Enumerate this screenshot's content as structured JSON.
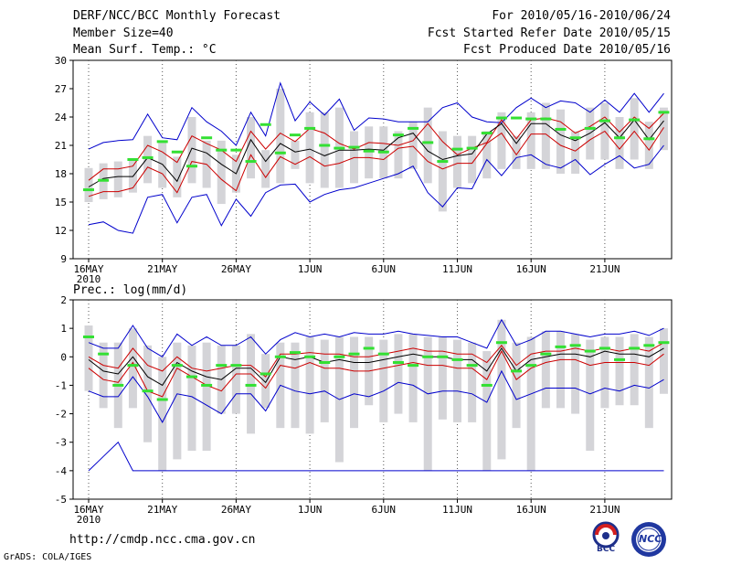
{
  "header": {
    "title": "DERF/NCC/BCC Monthly Forecast",
    "member": "Member Size=40",
    "variable": "Mean Surf. Temp.: °C",
    "period": "For 2010/05/16-2010/06/24",
    "refer": "Fcst Started Refer Date 2010/05/15",
    "produced": "Fcst Produced Date 2010/05/16"
  },
  "footer": {
    "url": "http://cmdp.ncc.cma.gov.cn",
    "credit": "GrADS: COLA/IGES",
    "logo_bcc": "BCC",
    "logo_ncc": "NCC"
  },
  "colors": {
    "spread": "#d4d4d8",
    "bound": "#0000cc",
    "band": "#cc0000",
    "mean": "#000000",
    "obs": "#33e033"
  },
  "chart_data": [
    {
      "type": "line",
      "title": "Mean Surf. Temp.: °C",
      "ylim": [
        9,
        30
      ],
      "yticks": [
        9,
        12,
        15,
        18,
        21,
        24,
        27,
        30
      ],
      "x_labels": [
        "16MAY",
        "21MAY",
        "26MAY",
        "1JUN",
        "6JUN",
        "11JUN",
        "16JUN",
        "21JUN"
      ],
      "x_year": "2010",
      "days": 40,
      "series": {
        "max": [
          20.6,
          21.3,
          21.5,
          21.6,
          24.3,
          21.8,
          21.6,
          25.0,
          23.5,
          22.5,
          21.0,
          24.5,
          22.0,
          27.6,
          23.6,
          25.6,
          24.2,
          25.9,
          22.6,
          23.9,
          23.8,
          23.5,
          23.5,
          23.5,
          25.0,
          25.5,
          24.0,
          23.5,
          23.4,
          25.0,
          26.0,
          25.0,
          25.7,
          25.5,
          24.5,
          25.8,
          24.5,
          26.5,
          24.5,
          26.5
        ],
        "upper": [
          17.3,
          18.5,
          18.5,
          18.8,
          21.0,
          20.3,
          19.2,
          22.0,
          21.2,
          20.5,
          19.3,
          22.5,
          20.6,
          22.3,
          21.4,
          22.8,
          22.3,
          21.2,
          20.6,
          21.3,
          21.2,
          21.0,
          21.5,
          23.3,
          21.4,
          20.0,
          20.7,
          21.3,
          23.7,
          21.7,
          23.7,
          23.9,
          23.5,
          22.3,
          23.0,
          24.0,
          22.4,
          24.0,
          22.8,
          24.4
        ],
        "mean": [
          16.6,
          17.5,
          17.7,
          17.7,
          19.7,
          19.0,
          17.2,
          20.7,
          20.2,
          19.0,
          18.0,
          21.6,
          19.3,
          21.2,
          20.3,
          20.6,
          19.9,
          20.5,
          20.5,
          20.6,
          20.5,
          21.8,
          22.3,
          20.4,
          19.5,
          19.9,
          20.1,
          22.2,
          23.3,
          21.2,
          23.3,
          23.3,
          22.1,
          21.5,
          22.3,
          23.4,
          21.8,
          23.7,
          21.6,
          23.6
        ],
        "lower": [
          15.6,
          16.1,
          16.1,
          16.5,
          18.7,
          18.0,
          16.0,
          19.3,
          19.0,
          17.4,
          16.2,
          20.0,
          17.6,
          19.8,
          19.0,
          19.8,
          18.8,
          19.1,
          19.7,
          19.7,
          19.5,
          20.7,
          20.9,
          19.3,
          18.5,
          19.1,
          19.1,
          21.2,
          22.3,
          20.0,
          22.2,
          22.2,
          21.0,
          20.4,
          21.6,
          22.5,
          20.6,
          22.5,
          20.5,
          22.9
        ],
        "min": [
          12.6,
          12.9,
          12.0,
          11.7,
          15.5,
          15.8,
          12.8,
          15.5,
          15.8,
          12.5,
          15.3,
          13.5,
          16.0,
          16.8,
          16.9,
          15.0,
          15.8,
          16.3,
          16.5,
          17.0,
          17.5,
          18.0,
          18.8,
          16.0,
          14.5,
          16.5,
          16.4,
          19.5,
          17.8,
          19.7,
          20.0,
          19.0,
          18.6,
          19.5,
          17.9,
          19.0,
          19.9,
          18.6,
          19.0,
          21.0
        ],
        "spread_hi": [
          18.6,
          19.1,
          19.3,
          19.5,
          22.0,
          21.3,
          19.8,
          24.0,
          21.5,
          21.5,
          20.0,
          24.0,
          20.5,
          27.0,
          21.5,
          24.5,
          24.5,
          25.0,
          22.5,
          23.0,
          23.0,
          22.5,
          23.5,
          25.0,
          22.5,
          22.0,
          22.0,
          22.5,
          24.5,
          22.0,
          24.5,
          25.5,
          24.8,
          22.5,
          25.0,
          25.5,
          24.0,
          26.0,
          23.5,
          25.0
        ],
        "spread_lo": [
          15.0,
          15.3,
          15.5,
          16.0,
          17.0,
          16.5,
          15.5,
          17.0,
          16.5,
          14.8,
          16.0,
          17.5,
          16.5,
          17.0,
          18.5,
          17.0,
          16.5,
          16.5,
          17.0,
          17.5,
          17.5,
          17.5,
          18.5,
          17.0,
          14.0,
          16.5,
          17.0,
          17.5,
          18.5,
          18.5,
          18.5,
          18.5,
          18.0,
          18.0,
          19.5,
          19.5,
          18.5,
          19.5,
          18.5,
          20.5
        ],
        "obs": [
          16.3,
          17.3,
          null,
          19.5,
          19.7,
          21.4,
          20.3,
          18.8,
          21.8,
          20.5,
          20.5,
          19.3,
          23.2,
          20.2,
          22.1,
          22.8,
          21.0,
          20.7,
          20.8,
          20.4,
          20.3,
          22.1,
          22.8,
          21.3,
          19.3,
          20.6,
          20.7,
          22.3,
          23.9,
          23.9,
          23.8,
          23.8,
          22.7,
          21.8,
          22.8,
          23.6,
          21.8,
          23.7,
          21.7,
          24.5
        ]
      }
    },
    {
      "type": "line",
      "title": "Prec.: log(mm/d)",
      "ylim": [
        -5,
        2
      ],
      "yticks": [
        -5,
        -4,
        -3,
        -2,
        -1,
        0,
        1,
        2
      ],
      "x_labels": [
        "16MAY",
        "21MAY",
        "26MAY",
        "1JUN",
        "6JUN",
        "11JUN",
        "16JUN",
        "21JUN"
      ],
      "x_year": "2010",
      "days": 40,
      "series": {
        "max": [
          0.5,
          0.3,
          0.3,
          1.1,
          0.3,
          0.0,
          0.8,
          0.4,
          0.7,
          0.4,
          0.4,
          0.7,
          0.1,
          0.6,
          0.85,
          0.7,
          0.8,
          0.7,
          0.85,
          0.8,
          0.8,
          0.9,
          0.8,
          0.75,
          0.7,
          0.7,
          0.5,
          0.3,
          1.3,
          0.4,
          0.6,
          0.9,
          0.9,
          0.8,
          0.7,
          0.8,
          0.8,
          0.9,
          0.75,
          1.0
        ],
        "upper": [
          0.0,
          -0.3,
          -0.4,
          0.3,
          -0.3,
          -0.5,
          0.0,
          -0.4,
          -0.5,
          -0.4,
          -0.3,
          -0.3,
          -0.7,
          0.1,
          0.1,
          0.15,
          0.1,
          0.1,
          0.0,
          0.0,
          0.1,
          0.2,
          0.3,
          0.2,
          0.2,
          0.1,
          0.1,
          -0.2,
          0.4,
          -0.3,
          0.1,
          0.2,
          0.2,
          0.3,
          0.2,
          0.3,
          0.2,
          0.3,
          0.2,
          0.5
        ],
        "mean": [
          -0.1,
          -0.5,
          -0.6,
          0.0,
          -0.7,
          -1.0,
          -0.2,
          -0.5,
          -0.7,
          -0.8,
          -0.4,
          -0.4,
          -0.9,
          0.0,
          -0.1,
          0.0,
          -0.2,
          -0.1,
          -0.2,
          -0.2,
          -0.1,
          0.0,
          0.1,
          0.0,
          0.0,
          -0.1,
          -0.1,
          -0.5,
          0.3,
          -0.5,
          -0.1,
          0.0,
          0.1,
          0.1,
          0.0,
          0.2,
          0.1,
          0.1,
          0.0,
          0.3
        ],
        "lower": [
          -0.4,
          -0.8,
          -0.9,
          -0.2,
          -1.2,
          -1.4,
          -0.4,
          -0.7,
          -1.0,
          -1.2,
          -0.6,
          -0.6,
          -1.1,
          -0.3,
          -0.4,
          -0.2,
          -0.4,
          -0.4,
          -0.5,
          -0.5,
          -0.4,
          -0.3,
          -0.2,
          -0.3,
          -0.3,
          -0.4,
          -0.4,
          -0.8,
          0.2,
          -0.8,
          -0.4,
          -0.2,
          -0.1,
          -0.1,
          -0.3,
          -0.2,
          -0.2,
          -0.2,
          -0.3,
          0.1
        ],
        "min": [
          -1.2,
          -1.4,
          -1.4,
          -0.7,
          -1.4,
          -2.3,
          -1.3,
          -1.4,
          -1.7,
          -2.0,
          -1.3,
          -1.3,
          -1.9,
          -1.0,
          -1.2,
          -1.3,
          -1.2,
          -1.5,
          -1.3,
          -1.4,
          -1.2,
          -0.9,
          -1.0,
          -1.3,
          -1.2,
          -1.2,
          -1.3,
          -1.6,
          -0.5,
          -1.5,
          -1.3,
          -1.1,
          -1.1,
          -1.1,
          -1.3,
          -1.1,
          -1.2,
          -1.0,
          -1.1,
          -0.8
        ],
        "min_floor": [
          -4.0,
          -3.5,
          -3.0,
          -4.0
        ],
        "spread_hi": [
          1.1,
          0.5,
          0.5,
          1.0,
          0.4,
          0.0,
          0.5,
          0.4,
          0.5,
          0.4,
          0.4,
          0.8,
          0.1,
          0.5,
          0.5,
          0.7,
          0.6,
          0.7,
          0.7,
          0.7,
          0.6,
          0.8,
          0.8,
          0.7,
          0.7,
          0.6,
          0.5,
          0.2,
          1.3,
          0.5,
          0.7,
          0.9,
          0.9,
          0.8,
          0.6,
          0.7,
          0.7,
          0.8,
          0.7,
          1.0
        ],
        "spread_lo": [
          -1.2,
          -1.8,
          -2.5,
          -1.8,
          -3.0,
          -4.0,
          -3.6,
          -3.3,
          -3.3,
          -2.0,
          -2.0,
          -2.7,
          -1.8,
          -2.5,
          -2.5,
          -2.7,
          -2.3,
          -3.7,
          -2.5,
          -1.7,
          -2.3,
          -2.0,
          -2.3,
          -4.0,
          -2.2,
          -2.3,
          -2.3,
          -4.0,
          -3.6,
          -2.5,
          -4.0,
          -1.8,
          -1.8,
          -2.0,
          -3.3,
          -1.8,
          -1.7,
          -1.7,
          -2.5,
          -1.3
        ],
        "obs": [
          0.7,
          0.1,
          -1.0,
          -0.3,
          -1.2,
          -1.5,
          -0.3,
          -0.7,
          -1.0,
          -0.3,
          -0.3,
          -1.0,
          -0.6,
          0.0,
          0.15,
          0.0,
          -0.2,
          0.0,
          0.1,
          0.3,
          0.1,
          -0.2,
          -0.3,
          0.0,
          0.0,
          -0.1,
          -0.3,
          -1.0,
          0.5,
          -0.5,
          -0.3,
          0.1,
          0.35,
          0.4,
          0.2,
          0.3,
          -0.1,
          0.3,
          0.4,
          0.5
        ]
      }
    }
  ]
}
